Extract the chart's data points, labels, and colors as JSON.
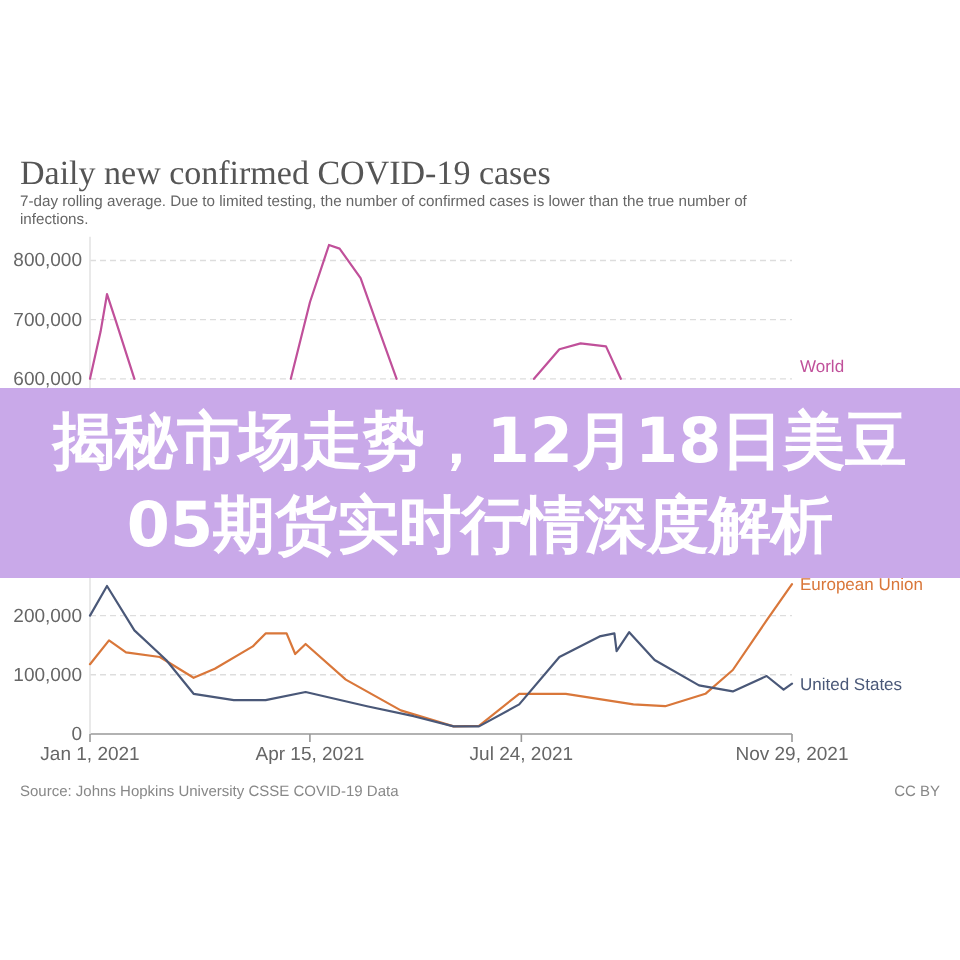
{
  "chart_data": {
    "type": "line",
    "title": "Daily new confirmed COVID-19 cases",
    "subtitle": "7-day rolling average. Due to limited testing, the number of confirmed cases is lower than the true number of infections.",
    "annotations": [
      "揭秘市场走势，12月18日美豆05期货实时行情深度解析",
      "Source: Johns Hopkins University CSSE COVID-19 Data",
      "CC BY"
    ],
    "xlim": [
      "2021-01-01",
      "2021-11-29"
    ],
    "xticks": [
      {
        "value": "2021-01-01",
        "label": "Jan 1, 2021"
      },
      {
        "value": "2021-04-15",
        "label": "Apr 15, 2021"
      },
      {
        "value": "2021-07-24",
        "label": "Jul 24, 2021"
      },
      {
        "value": "2021-11-29",
        "label": "Nov 29, 2021"
      }
    ],
    "ylim": [
      0,
      840000
    ],
    "yticks": [
      {
        "value": 0,
        "label": "0"
      },
      {
        "value": 100000,
        "label": "100,000"
      },
      {
        "value": 200000,
        "label": "200,000"
      },
      {
        "value": 600000,
        "label": "600,000"
      },
      {
        "value": 700000,
        "label": "700,000"
      },
      {
        "value": 800000,
        "label": "800,000"
      }
    ],
    "grid": "y",
    "marker": "none",
    "line_style": "solid",
    "series": [
      {
        "name": "World",
        "color": "#c0509a",
        "x": [
          "2021-01-01",
          "2021-01-06",
          "2021-01-09",
          "2021-01-13",
          "2021-01-22",
          "2021-02-13",
          "2021-04-06",
          "2021-04-15",
          "2021-04-24",
          "2021-04-29",
          "2021-05-09",
          "2021-05-18",
          "2021-05-26",
          "2021-06-20",
          "2021-07-30",
          "2021-08-11",
          "2021-08-21",
          "2021-09-02",
          "2021-09-09"
        ],
        "values": [
          600000,
          680000,
          743000,
          700000,
          600000,
          null,
          600000,
          730000,
          826000,
          820000,
          770000,
          680000,
          600000,
          null,
          600000,
          650000,
          660000,
          655000,
          600000
        ]
      },
      {
        "name": "European Union",
        "color": "#d9773a",
        "x": [
          "2021-01-01",
          "2021-01-10",
          "2021-01-18",
          "2021-02-03",
          "2021-02-19",
          "2021-03-01",
          "2021-03-19",
          "2021-03-25",
          "2021-04-04",
          "2021-04-08",
          "2021-04-13",
          "2021-05-02",
          "2021-05-28",
          "2021-06-22",
          "2021-07-04",
          "2021-07-23",
          "2021-08-14",
          "2021-09-15",
          "2021-09-30",
          "2021-10-19",
          "2021-11-01",
          "2021-11-17",
          "2021-11-29"
        ],
        "values": [
          118000,
          158000,
          138000,
          130000,
          95000,
          110000,
          148000,
          170000,
          170000,
          135000,
          152000,
          92000,
          40000,
          13000,
          14000,
          68000,
          68000,
          50000,
          47000,
          68000,
          108000,
          192000,
          253000
        ]
      },
      {
        "name": "United States",
        "color": "#4a5878",
        "x": [
          "2021-01-01",
          "2021-01-09",
          "2021-01-22",
          "2021-02-06",
          "2021-02-19",
          "2021-03-10",
          "2021-03-25",
          "2021-04-13",
          "2021-05-12",
          "2021-06-03",
          "2021-06-22",
          "2021-07-04",
          "2021-07-23",
          "2021-08-11",
          "2021-08-30",
          "2021-09-06",
          "2021-09-07",
          "2021-09-13",
          "2021-09-25",
          "2021-10-16",
          "2021-11-01",
          "2021-11-17",
          "2021-11-25",
          "2021-11-29"
        ],
        "values": [
          200000,
          250000,
          175000,
          125000,
          68000,
          57000,
          57000,
          71000,
          47000,
          30000,
          13000,
          13000,
          50000,
          130000,
          165000,
          170000,
          140000,
          172000,
          125000,
          82000,
          72000,
          98000,
          75000,
          85000
        ]
      }
    ]
  }
}
